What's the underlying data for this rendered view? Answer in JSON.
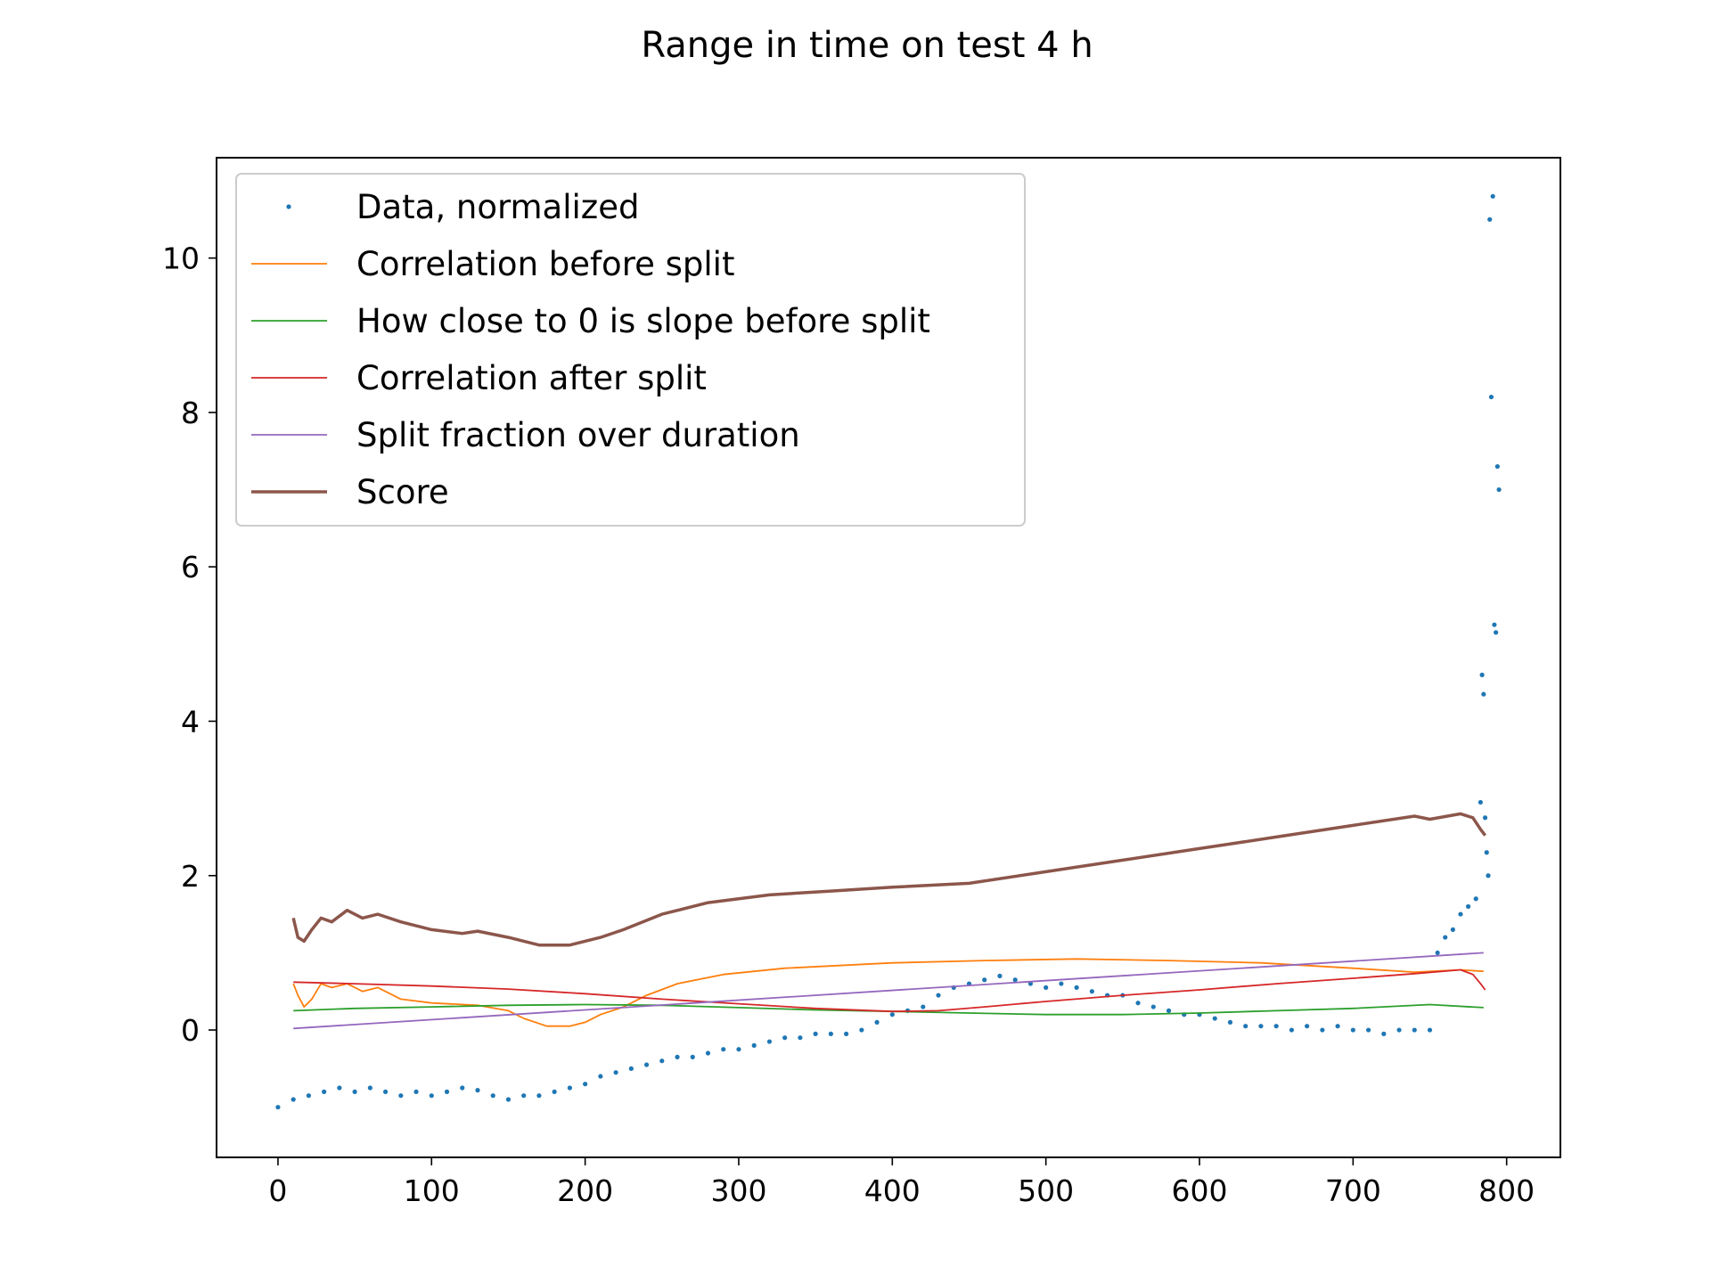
{
  "chart_data": {
    "type": "line",
    "title": "Range in time on test 4 h",
    "xlabel": "",
    "ylabel": "",
    "xlim": [
      -40,
      835
    ],
    "ylim": [
      -1.65,
      11.3
    ],
    "xticks": [
      0,
      100,
      200,
      300,
      400,
      500,
      600,
      700,
      800
    ],
    "yticks": [
      0,
      2,
      4,
      6,
      8,
      10
    ],
    "grid": false,
    "legend_position": "top-left",
    "series": [
      {
        "name": "Data, normalized",
        "kind": "scatter",
        "color": "#1f77b4",
        "points": [
          [
            0,
            -1.0
          ],
          [
            10,
            -0.9
          ],
          [
            20,
            -0.85
          ],
          [
            30,
            -0.8
          ],
          [
            40,
            -0.75
          ],
          [
            50,
            -0.8
          ],
          [
            60,
            -0.75
          ],
          [
            70,
            -0.8
          ],
          [
            80,
            -0.85
          ],
          [
            90,
            -0.8
          ],
          [
            100,
            -0.85
          ],
          [
            110,
            -0.8
          ],
          [
            120,
            -0.75
          ],
          [
            130,
            -0.78
          ],
          [
            140,
            -0.85
          ],
          [
            150,
            -0.9
          ],
          [
            160,
            -0.85
          ],
          [
            170,
            -0.85
          ],
          [
            180,
            -0.8
          ],
          [
            190,
            -0.75
          ],
          [
            200,
            -0.7
          ],
          [
            210,
            -0.6
          ],
          [
            220,
            -0.55
          ],
          [
            230,
            -0.5
          ],
          [
            240,
            -0.45
          ],
          [
            250,
            -0.4
          ],
          [
            260,
            -0.35
          ],
          [
            270,
            -0.35
          ],
          [
            280,
            -0.3
          ],
          [
            290,
            -0.25
          ],
          [
            300,
            -0.25
          ],
          [
            310,
            -0.2
          ],
          [
            320,
            -0.15
          ],
          [
            330,
            -0.1
          ],
          [
            340,
            -0.1
          ],
          [
            350,
            -0.05
          ],
          [
            360,
            -0.05
          ],
          [
            370,
            -0.05
          ],
          [
            380,
            0.0
          ],
          [
            390,
            0.1
          ],
          [
            400,
            0.2
          ],
          [
            410,
            0.25
          ],
          [
            420,
            0.3
          ],
          [
            430,
            0.45
          ],
          [
            440,
            0.55
          ],
          [
            450,
            0.6
          ],
          [
            460,
            0.65
          ],
          [
            470,
            0.7
          ],
          [
            480,
            0.65
          ],
          [
            490,
            0.6
          ],
          [
            500,
            0.55
          ],
          [
            510,
            0.6
          ],
          [
            520,
            0.55
          ],
          [
            530,
            0.5
          ],
          [
            540,
            0.45
          ],
          [
            550,
            0.45
          ],
          [
            560,
            0.35
          ],
          [
            570,
            0.3
          ],
          [
            580,
            0.25
          ],
          [
            590,
            0.2
          ],
          [
            600,
            0.2
          ],
          [
            610,
            0.15
          ],
          [
            620,
            0.1
          ],
          [
            630,
            0.05
          ],
          [
            640,
            0.05
          ],
          [
            650,
            0.05
          ],
          [
            660,
            0.0
          ],
          [
            670,
            0.05
          ],
          [
            680,
            0.0
          ],
          [
            690,
            0.05
          ],
          [
            700,
            0.0
          ],
          [
            710,
            0.0
          ],
          [
            720,
            -0.05
          ],
          [
            730,
            0.0
          ],
          [
            740,
            0.0
          ],
          [
            750,
            0.0
          ],
          [
            755,
            1.0
          ],
          [
            760,
            1.2
          ],
          [
            765,
            1.3
          ],
          [
            770,
            1.5
          ],
          [
            775,
            1.6
          ],
          [
            780,
            1.7
          ],
          [
            783,
            2.95
          ],
          [
            784,
            4.6
          ],
          [
            785,
            4.35
          ],
          [
            786,
            2.75
          ],
          [
            787,
            2.3
          ],
          [
            788,
            2.0
          ],
          [
            789,
            10.5
          ],
          [
            790,
            8.2
          ],
          [
            791,
            10.8
          ],
          [
            792,
            5.25
          ],
          [
            793,
            5.15
          ],
          [
            794,
            7.3
          ],
          [
            795,
            7.0
          ]
        ]
      },
      {
        "name": "Correlation before split",
        "kind": "line",
        "color": "#ff7f0e",
        "points": [
          [
            10,
            0.6
          ],
          [
            13,
            0.45
          ],
          [
            17,
            0.3
          ],
          [
            22,
            0.4
          ],
          [
            28,
            0.6
          ],
          [
            35,
            0.55
          ],
          [
            45,
            0.6
          ],
          [
            55,
            0.5
          ],
          [
            65,
            0.55
          ],
          [
            80,
            0.4
          ],
          [
            100,
            0.35
          ],
          [
            130,
            0.32
          ],
          [
            150,
            0.25
          ],
          [
            160,
            0.15
          ],
          [
            175,
            0.05
          ],
          [
            190,
            0.05
          ],
          [
            200,
            0.1
          ],
          [
            210,
            0.2
          ],
          [
            225,
            0.3
          ],
          [
            240,
            0.45
          ],
          [
            260,
            0.6
          ],
          [
            290,
            0.72
          ],
          [
            330,
            0.8
          ],
          [
            400,
            0.87
          ],
          [
            460,
            0.9
          ],
          [
            520,
            0.92
          ],
          [
            580,
            0.9
          ],
          [
            640,
            0.87
          ],
          [
            700,
            0.8
          ],
          [
            740,
            0.75
          ],
          [
            770,
            0.78
          ],
          [
            785,
            0.76
          ]
        ]
      },
      {
        "name": "How close to 0 is slope before split",
        "kind": "line",
        "color": "#2ca02c",
        "points": [
          [
            10,
            0.25
          ],
          [
            50,
            0.28
          ],
          [
            100,
            0.3
          ],
          [
            150,
            0.32
          ],
          [
            200,
            0.33
          ],
          [
            250,
            0.32
          ],
          [
            300,
            0.29
          ],
          [
            350,
            0.26
          ],
          [
            400,
            0.24
          ],
          [
            450,
            0.22
          ],
          [
            500,
            0.2
          ],
          [
            550,
            0.2
          ],
          [
            600,
            0.22
          ],
          [
            650,
            0.25
          ],
          [
            700,
            0.28
          ],
          [
            750,
            0.33
          ],
          [
            785,
            0.29
          ]
        ]
      },
      {
        "name": "Correlation after split",
        "kind": "line",
        "color": "#d62728",
        "points": [
          [
            10,
            0.62
          ],
          [
            50,
            0.6
          ],
          [
            100,
            0.57
          ],
          [
            150,
            0.53
          ],
          [
            200,
            0.47
          ],
          [
            250,
            0.4
          ],
          [
            300,
            0.34
          ],
          [
            350,
            0.28
          ],
          [
            400,
            0.24
          ],
          [
            430,
            0.25
          ],
          [
            460,
            0.3
          ],
          [
            500,
            0.37
          ],
          [
            550,
            0.45
          ],
          [
            600,
            0.52
          ],
          [
            650,
            0.6
          ],
          [
            700,
            0.67
          ],
          [
            740,
            0.73
          ],
          [
            770,
            0.78
          ],
          [
            778,
            0.72
          ],
          [
            783,
            0.6
          ],
          [
            786,
            0.52
          ]
        ]
      },
      {
        "name": "Split fraction over duration",
        "kind": "line",
        "color": "#9467bd",
        "points": [
          [
            10,
            0.02
          ],
          [
            785,
            1.0
          ]
        ]
      },
      {
        "name": "Score",
        "kind": "line",
        "color": "#8c564b",
        "points": [
          [
            10,
            1.45
          ],
          [
            13,
            1.2
          ],
          [
            17,
            1.15
          ],
          [
            22,
            1.3
          ],
          [
            28,
            1.45
          ],
          [
            35,
            1.4
          ],
          [
            45,
            1.55
          ],
          [
            55,
            1.45
          ],
          [
            65,
            1.5
          ],
          [
            80,
            1.4
          ],
          [
            100,
            1.3
          ],
          [
            120,
            1.25
          ],
          [
            130,
            1.28
          ],
          [
            150,
            1.2
          ],
          [
            170,
            1.1
          ],
          [
            190,
            1.1
          ],
          [
            210,
            1.2
          ],
          [
            225,
            1.3
          ],
          [
            250,
            1.5
          ],
          [
            280,
            1.65
          ],
          [
            320,
            1.75
          ],
          [
            360,
            1.8
          ],
          [
            400,
            1.85
          ],
          [
            450,
            1.9
          ],
          [
            500,
            2.05
          ],
          [
            550,
            2.2
          ],
          [
            600,
            2.35
          ],
          [
            650,
            2.5
          ],
          [
            700,
            2.65
          ],
          [
            740,
            2.77
          ],
          [
            750,
            2.73
          ],
          [
            770,
            2.8
          ],
          [
            778,
            2.75
          ],
          [
            783,
            2.6
          ],
          [
            786,
            2.52
          ]
        ]
      }
    ]
  }
}
